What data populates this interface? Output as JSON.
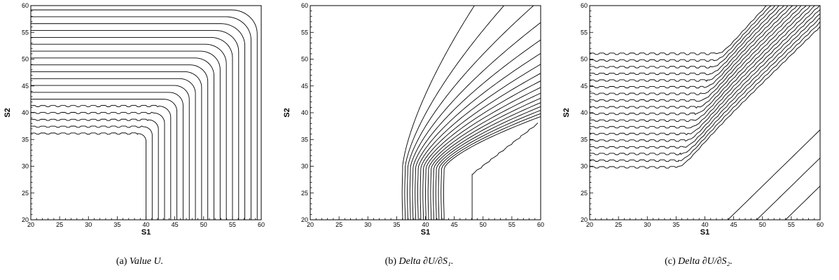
{
  "chart_data": [
    {
      "type": "contour",
      "xlabel": "S1",
      "ylabel": "S2",
      "xlim": [
        20,
        60
      ],
      "ylim": [
        20,
        60
      ],
      "xticks": [
        20,
        25,
        30,
        35,
        40,
        45,
        50,
        55,
        60
      ],
      "yticks": [
        20,
        25,
        30,
        35,
        40,
        45,
        50,
        55,
        60
      ],
      "caption": {
        "prefix": "(a)",
        "name": "Value",
        "math": "U."
      },
      "contours": {
        "kind": "value",
        "levels": 19
      }
    },
    {
      "type": "contour",
      "xlabel": "S1",
      "ylabel": "S2",
      "xlim": [
        20,
        60
      ],
      "ylim": [
        20,
        60
      ],
      "xticks": [
        20,
        25,
        30,
        35,
        40,
        45,
        50,
        55,
        60
      ],
      "yticks": [
        20,
        25,
        30,
        35,
        40,
        45,
        50,
        55,
        60
      ],
      "caption": {
        "prefix": "(b)",
        "name": "Delta",
        "math": "∂U/∂S₁."
      },
      "contours": {
        "kind": "delta1",
        "levels": 19
      }
    },
    {
      "type": "contour",
      "xlabel": "S1",
      "ylabel": "S2",
      "xlim": [
        20,
        60
      ],
      "ylim": [
        20,
        60
      ],
      "xticks": [
        20,
        25,
        30,
        35,
        40,
        45,
        50,
        55,
        60
      ],
      "yticks": [
        20,
        25,
        30,
        35,
        40,
        45,
        50,
        55,
        60
      ],
      "caption": {
        "prefix": "(c)",
        "name": "Delta",
        "math": "∂U/∂S₂."
      },
      "contours": {
        "kind": "delta2",
        "levels": 18
      }
    }
  ]
}
